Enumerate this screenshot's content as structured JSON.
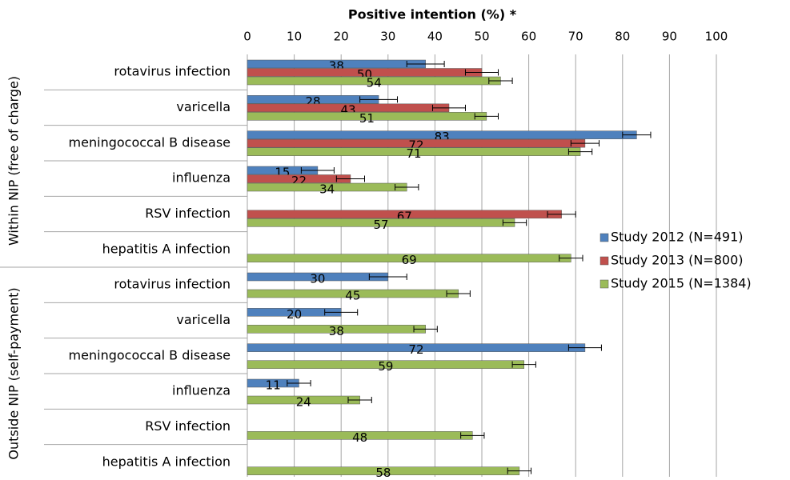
{
  "chart_data": {
    "type": "bar",
    "orientation": "horizontal",
    "x_label": "Positive intention (%) *",
    "groups": [
      "Within NIP (free of charge)",
      "Outside NIP (self-payment)"
    ],
    "categories": [
      "rotavirus infection",
      "varicella",
      "meningococcal B disease",
      "influenza",
      "RSV infection",
      "hepatitis A infection",
      "rotavirus infection",
      "varicella",
      "meningococcal B disease",
      "influenza",
      "RSV infection",
      "hepatitis A infection"
    ],
    "series": [
      {
        "name": "Study 2012 (N=491)",
        "color": "#4f81bd",
        "values": [
          38,
          28,
          83,
          15,
          null,
          null,
          30,
          20,
          72,
          11,
          null,
          null
        ],
        "errors": [
          4,
          4,
          3,
          3.5,
          null,
          null,
          4,
          3.5,
          3.5,
          2.5,
          null,
          null
        ]
      },
      {
        "name": "Study 2013 (N=800)",
        "color": "#c0504d",
        "values": [
          50,
          43,
          72,
          22,
          67,
          null,
          null,
          null,
          null,
          null,
          null,
          null
        ],
        "errors": [
          3.5,
          3.5,
          3,
          3,
          3,
          null,
          null,
          null,
          null,
          null,
          null,
          null
        ]
      },
      {
        "name": "Study 2015 (N=1384)",
        "color": "#9bbb59",
        "values": [
          54,
          51,
          71,
          34,
          57,
          69,
          45,
          38,
          59,
          24,
          48,
          58
        ],
        "errors": [
          2.5,
          2.5,
          2.5,
          2.5,
          2.5,
          2.5,
          2.5,
          2.5,
          2.5,
          2.5,
          2.5,
          2.5
        ]
      }
    ],
    "xlim": [
      0,
      100
    ],
    "xticks": [
      0,
      10,
      20,
      30,
      40,
      50,
      60,
      70,
      80,
      90,
      100
    ],
    "grid": true,
    "legend": "right"
  }
}
